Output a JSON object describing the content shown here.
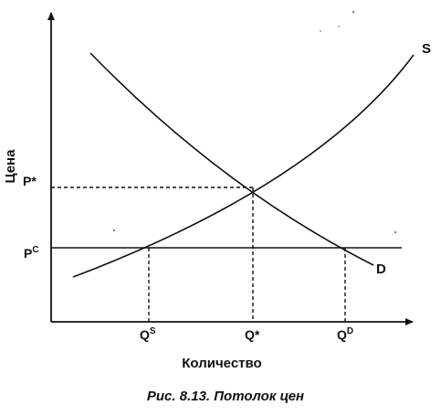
{
  "figure": {
    "caption": "Рис. 8.13. Потолок цен",
    "axes": {
      "y_title": "Цена",
      "x_title": "Количество"
    },
    "price_labels": {
      "equilibrium": "P*",
      "ceiling_base": "P",
      "ceiling_sup": "C"
    },
    "quantity_labels": {
      "supplied_base": "Q",
      "supplied_sup": "S",
      "equilibrium": "Q*",
      "demanded_base": "Q",
      "demanded_sup": "D"
    },
    "curves": {
      "supply": "S",
      "demand": "D"
    },
    "colors": {
      "ink": "#111111",
      "background": "#ffffff"
    }
  }
}
